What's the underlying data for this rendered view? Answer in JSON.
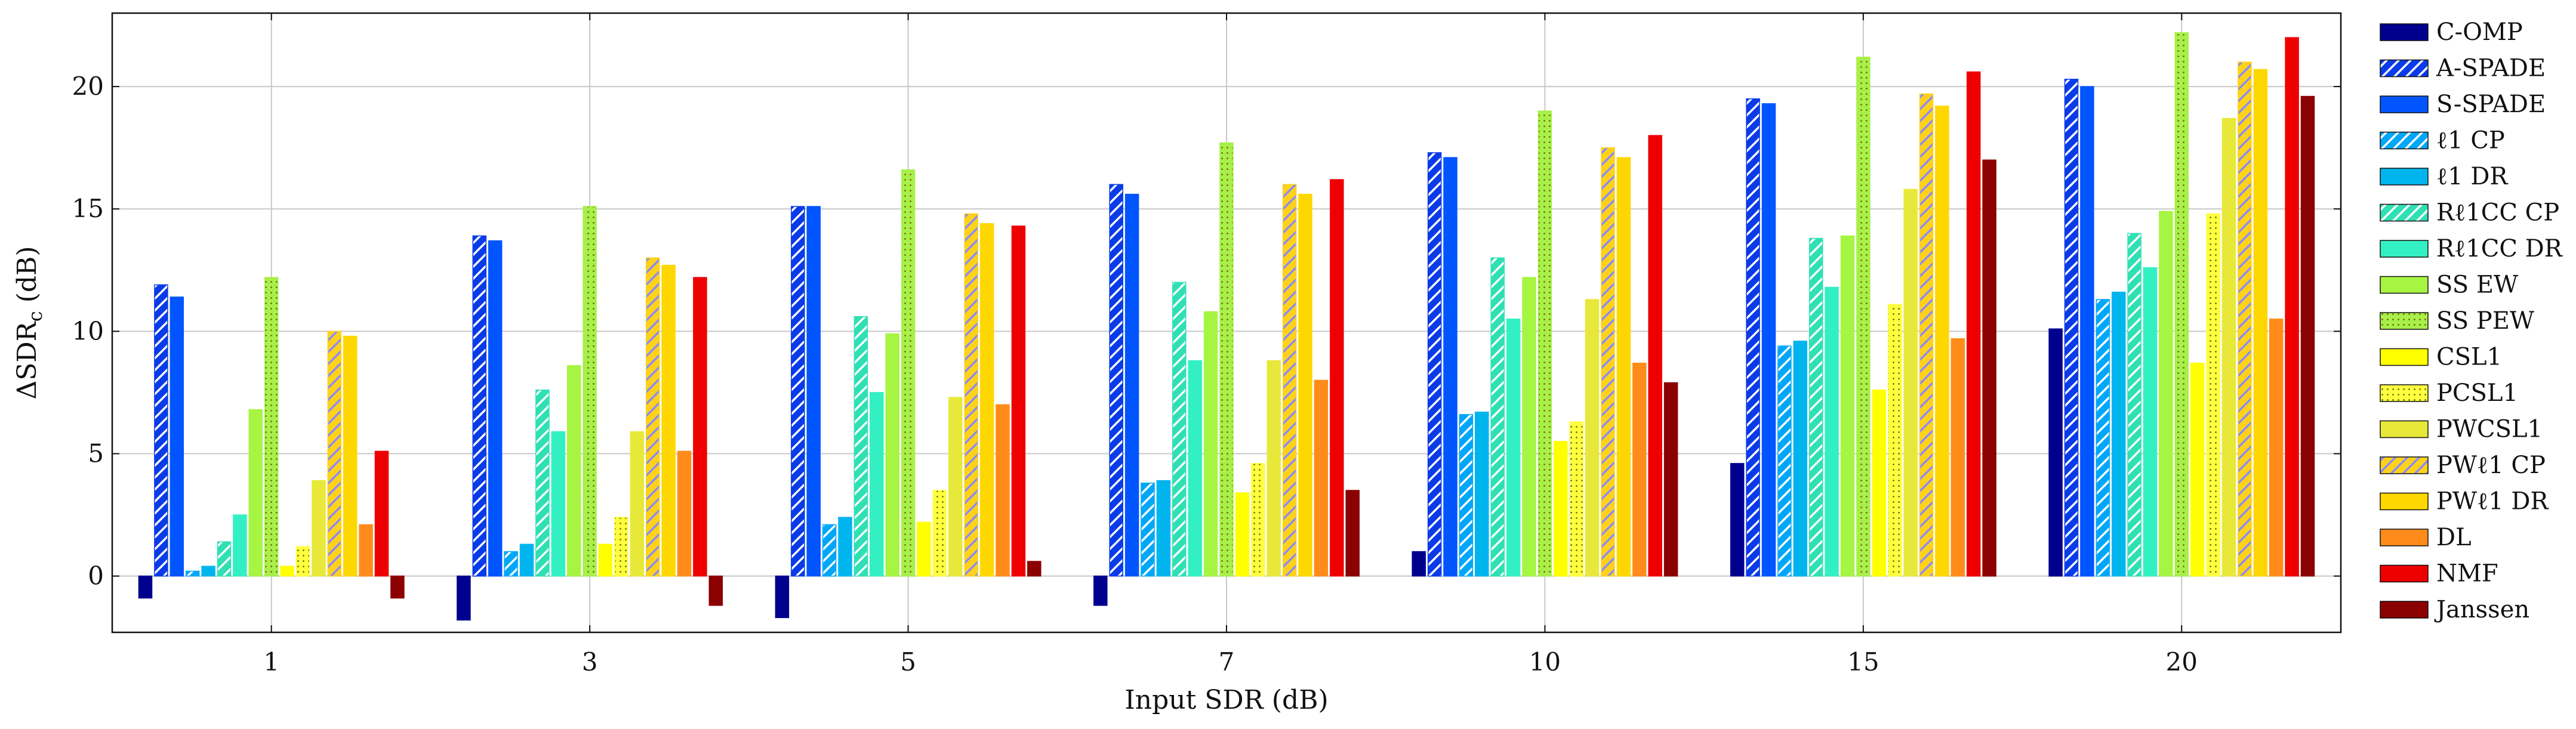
{
  "chart_data": {
    "type": "bar",
    "xlabel": "Input SDR (dB)",
    "ylabel": "ΔSDR_c (dB)",
    "categories": [
      "1",
      "3",
      "5",
      "7",
      "10",
      "15",
      "20"
    ],
    "ylim": [
      -2.3,
      23
    ],
    "yticks": [
      0,
      5,
      10,
      15,
      20
    ],
    "grid": true,
    "legend_position": "right",
    "series": [
      {
        "name": "C-OMP",
        "color": "#00008F",
        "pattern": "solid",
        "values": [
          -0.9,
          -1.8,
          -1.7,
          -1.2,
          1.0,
          4.6,
          10.1
        ]
      },
      {
        "name": "A-SPADE",
        "color": "#0a3be8",
        "pattern": "hatch",
        "values": [
          11.9,
          13.9,
          15.1,
          16.0,
          17.3,
          19.5,
          20.3
        ]
      },
      {
        "name": "S-SPADE",
        "color": "#0055ff",
        "pattern": "solid",
        "values": [
          11.4,
          13.7,
          15.1,
          15.6,
          17.1,
          19.3,
          20.0
        ]
      },
      {
        "name": "ℓ1 CP",
        "color": "#00a7f8",
        "pattern": "hatch",
        "values": [
          0.2,
          1.0,
          2.1,
          3.8,
          6.6,
          9.4,
          11.3
        ]
      },
      {
        "name": "ℓ1 DR",
        "color": "#00b5ee",
        "pattern": "solid",
        "values": [
          0.4,
          1.3,
          2.4,
          3.9,
          6.7,
          9.6,
          11.6
        ]
      },
      {
        "name": "Rℓ1CC CP",
        "color": "#2fe0b4",
        "pattern": "hatch",
        "values": [
          1.4,
          7.6,
          10.6,
          12.0,
          13.0,
          13.8,
          14.0
        ]
      },
      {
        "name": "Rℓ1CC DR",
        "color": "#33f0c3",
        "pattern": "solid",
        "values": [
          2.5,
          5.9,
          7.5,
          8.8,
          10.5,
          11.8,
          12.6
        ]
      },
      {
        "name": "SS EW",
        "color": "#a6f542",
        "pattern": "solid",
        "values": [
          6.8,
          8.6,
          9.9,
          10.8,
          12.2,
          13.9,
          14.9
        ]
      },
      {
        "name": "SS PEW",
        "color": "#a8ef4a",
        "pattern": "dots",
        "values": [
          12.2,
          15.1,
          16.6,
          17.7,
          19.0,
          21.2,
          22.2
        ]
      },
      {
        "name": "CSL1",
        "color": "#ffff00",
        "pattern": "solid",
        "values": [
          0.4,
          1.3,
          2.2,
          3.4,
          5.5,
          7.6,
          8.7
        ]
      },
      {
        "name": "PCSL1",
        "color": "#ffff40",
        "pattern": "dots",
        "values": [
          1.2,
          2.4,
          3.5,
          4.6,
          6.3,
          11.1,
          14.8
        ]
      },
      {
        "name": "PWCSL1",
        "color": "#e8e83a",
        "pattern": "solid",
        "values": [
          3.9,
          5.9,
          7.3,
          8.8,
          11.3,
          15.8,
          18.7
        ]
      },
      {
        "name": "PWℓ1 CP",
        "color": "#ffd21a",
        "pattern": "hatch",
        "values": [
          10.0,
          13.0,
          14.8,
          16.0,
          17.5,
          19.7,
          21.0
        ]
      },
      {
        "name": "PWℓ1 DR",
        "color": "#ffd700",
        "pattern": "solid",
        "values": [
          9.8,
          12.7,
          14.4,
          15.6,
          17.1,
          19.2,
          20.7
        ]
      },
      {
        "name": "DL",
        "color": "#ff8c1a",
        "pattern": "solid",
        "values": [
          2.1,
          5.1,
          7.0,
          8.0,
          8.7,
          9.7,
          10.5
        ]
      },
      {
        "name": "NMF",
        "color": "#ee0000",
        "pattern": "solid",
        "values": [
          5.1,
          12.2,
          14.3,
          16.2,
          18.0,
          20.6,
          22.0
        ]
      },
      {
        "name": "Janssen",
        "color": "#8b0000",
        "pattern": "solid",
        "values": [
          -0.9,
          -1.2,
          0.6,
          3.5,
          7.9,
          17.0,
          19.6
        ]
      }
    ]
  }
}
